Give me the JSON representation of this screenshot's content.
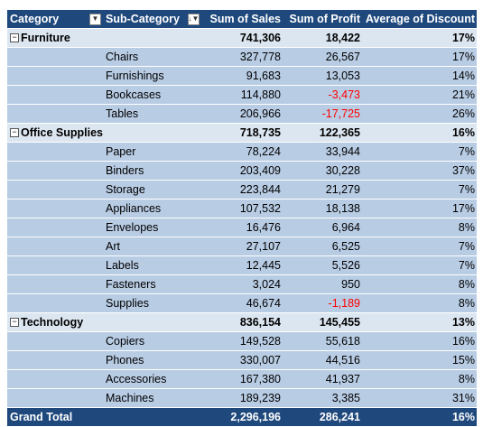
{
  "headers": {
    "category": "Category",
    "subcategory": "Sub-Category",
    "sales": "Sum of Sales",
    "profit": "Sum of Profit",
    "discount": "Average of Discount"
  },
  "categories": [
    {
      "name": "Furniture",
      "sales": "741,306",
      "profit": "18,422",
      "discount": "17%",
      "items": [
        {
          "name": "Chairs",
          "sales": "327,778",
          "profit": "26,567",
          "discount": "17%",
          "negative": false
        },
        {
          "name": "Furnishings",
          "sales": "91,683",
          "profit": "13,053",
          "discount": "14%",
          "negative": false
        },
        {
          "name": "Bookcases",
          "sales": "114,880",
          "profit": "-3,473",
          "discount": "21%",
          "negative": true
        },
        {
          "name": "Tables",
          "sales": "206,966",
          "profit": "-17,725",
          "discount": "26%",
          "negative": true
        }
      ]
    },
    {
      "name": "Office Supplies",
      "sales": "718,735",
      "profit": "122,365",
      "discount": "16%",
      "items": [
        {
          "name": "Paper",
          "sales": "78,224",
          "profit": "33,944",
          "discount": "7%",
          "negative": false
        },
        {
          "name": "Binders",
          "sales": "203,409",
          "profit": "30,228",
          "discount": "37%",
          "negative": false
        },
        {
          "name": "Storage",
          "sales": "223,844",
          "profit": "21,279",
          "discount": "7%",
          "negative": false
        },
        {
          "name": "Appliances",
          "sales": "107,532",
          "profit": "18,138",
          "discount": "17%",
          "negative": false
        },
        {
          "name": "Envelopes",
          "sales": "16,476",
          "profit": "6,964",
          "discount": "8%",
          "negative": false
        },
        {
          "name": "Art",
          "sales": "27,107",
          "profit": "6,525",
          "discount": "7%",
          "negative": false
        },
        {
          "name": "Labels",
          "sales": "12,445",
          "profit": "5,526",
          "discount": "7%",
          "negative": false
        },
        {
          "name": "Fasteners",
          "sales": "3,024",
          "profit": "950",
          "discount": "8%",
          "negative": false
        },
        {
          "name": "Supplies",
          "sales": "46,674",
          "profit": "-1,189",
          "discount": "8%",
          "negative": true
        }
      ]
    },
    {
      "name": "Technology",
      "sales": "836,154",
      "profit": "145,455",
      "discount": "13%",
      "items": [
        {
          "name": "Copiers",
          "sales": "149,528",
          "profit": "55,618",
          "discount": "16%",
          "negative": false
        },
        {
          "name": "Phones",
          "sales": "330,007",
          "profit": "44,516",
          "discount": "15%",
          "negative": false
        },
        {
          "name": "Accessories",
          "sales": "167,380",
          "profit": "41,937",
          "discount": "8%",
          "negative": false
        },
        {
          "name": "Machines",
          "sales": "189,239",
          "profit": "3,385",
          "discount": "31%",
          "negative": false
        }
      ]
    }
  ],
  "grand_total": {
    "label": "Grand Total",
    "sales": "2,296,196",
    "profit": "286,241",
    "discount": "16%"
  },
  "icons": {
    "dropdown": "dropdown-arrow-icon",
    "sort_filter": "sort-filter-icon",
    "collapse": "collapse-minus-icon"
  },
  "colors": {
    "header_bg": "#1f497d",
    "category_bg": "#dce6f1",
    "item_bg": "#b8cce4",
    "negative": "#ff0000"
  }
}
